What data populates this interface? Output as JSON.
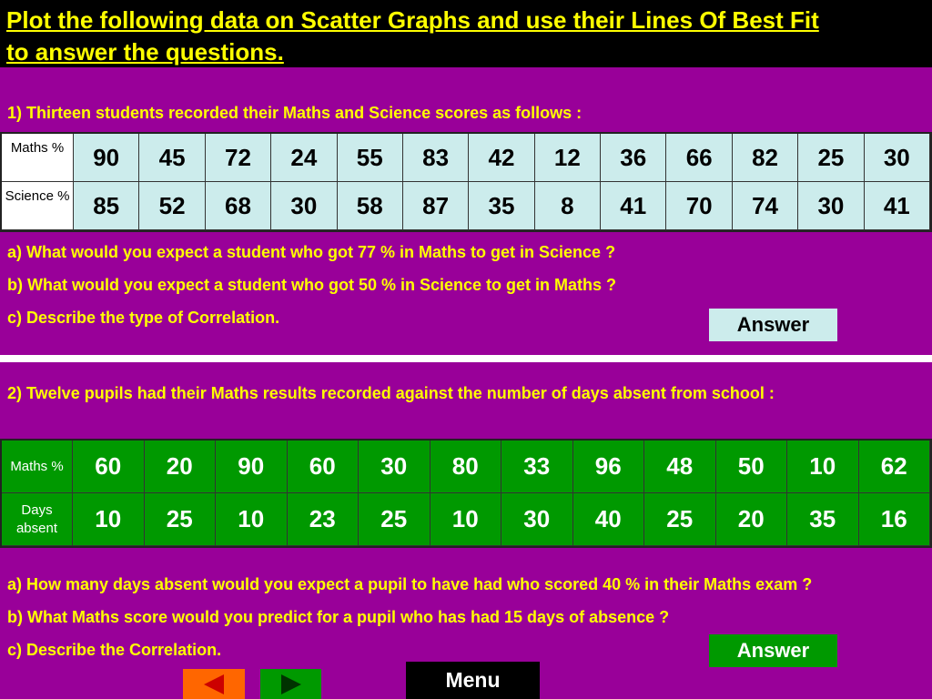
{
  "header": {
    "title_line1": "Plot the following data on Scatter Graphs and use their Lines Of Best Fit",
    "title_line2": "to answer the questions."
  },
  "q1": {
    "intro": "1)  Thirteen students recorded their Maths and Science scores as follows :",
    "table": {
      "row_headers": [
        "Maths %",
        "Science %"
      ],
      "maths": [
        90,
        45,
        72,
        24,
        55,
        83,
        42,
        12,
        36,
        66,
        82,
        25,
        30
      ],
      "science": [
        85,
        52,
        68,
        30,
        58,
        87,
        35,
        8,
        41,
        70,
        74,
        30,
        41
      ]
    },
    "questions": [
      "a)  What would you expect a student who got  77 %  in Maths to get in Science ?",
      "b)  What would you expect a student who got  50 %  in Science to get in Maths ?",
      "c)  Describe the type of Correlation."
    ],
    "answer_label": "Answer"
  },
  "q2": {
    "intro": "2)  Twelve pupils had their  Maths results recorded against the number of days absent from school :",
    "table": {
      "row_headers": [
        "Maths %",
        "Days absent"
      ],
      "maths": [
        60,
        20,
        90,
        60,
        30,
        80,
        33,
        96,
        48,
        50,
        10,
        62
      ],
      "days_absent": [
        10,
        25,
        10,
        23,
        25,
        10,
        30,
        40,
        25,
        20,
        35,
        16
      ]
    },
    "questions": [
      "a)  How many days absent would you expect a pupil to have had  who scored  40 %  in their Maths exam ?",
      "b)  What Maths score would you predict for a pupil who has had  15  days of absence ?",
      "c)  Describe the Correlation."
    ],
    "answer_label": "Answer"
  },
  "nav": {
    "menu_label": "Menu",
    "prev_icon": "arrow-left-icon",
    "next_icon": "arrow-right-icon"
  },
  "colors": {
    "background": "#990099",
    "title_bar": "#000000",
    "title_text": "#ffff00",
    "table1_bg": "#ccecec",
    "table2_bg": "#009900",
    "prev_button": "#ff6600",
    "next_button": "#009900"
  }
}
